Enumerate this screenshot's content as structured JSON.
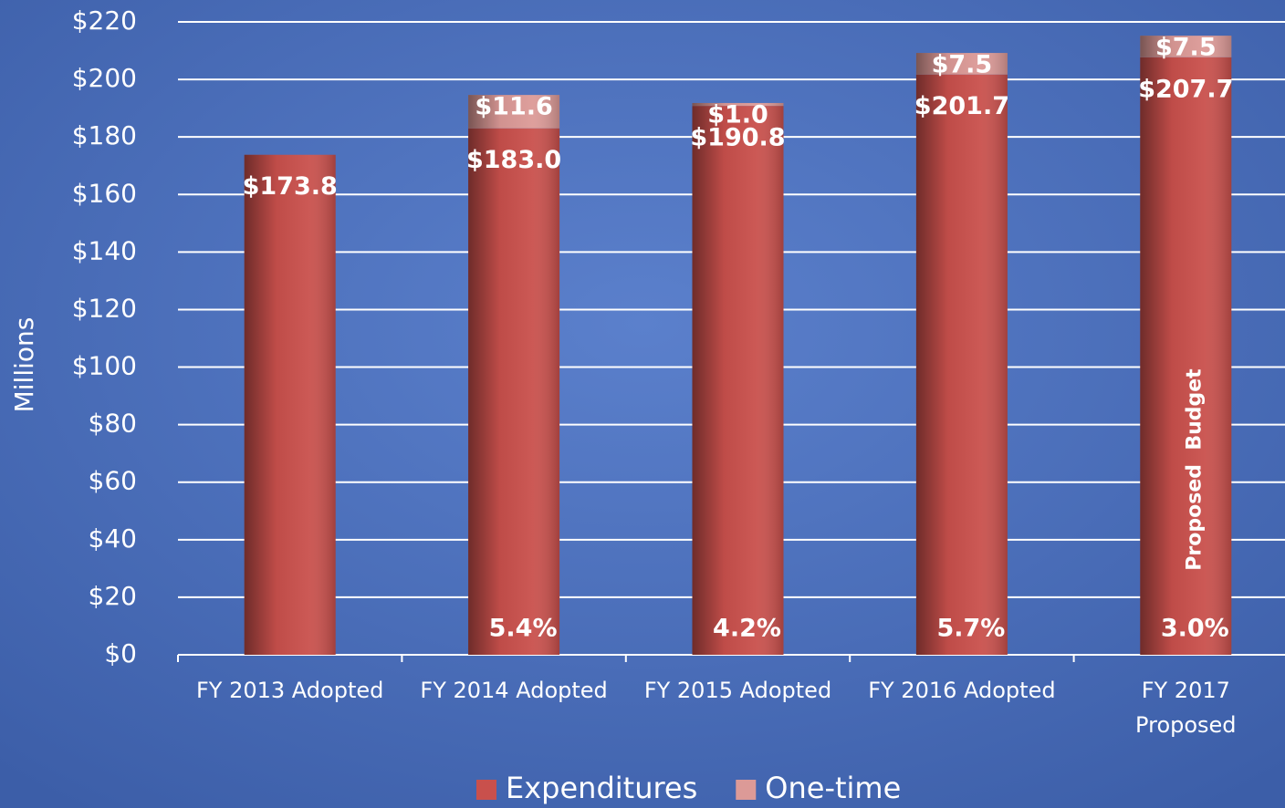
{
  "chart_data": {
    "type": "stacked_bar",
    "categories": [
      "FY 2013 Adopted",
      "FY 2014 Adopted",
      "FY 2015 Adopted",
      "FY 2016 Adopted",
      "FY 2017 Proposed"
    ],
    "series": [
      {
        "name": "Expenditures",
        "color": "#c9504c",
        "values": [
          173.8,
          183.0,
          190.8,
          201.7,
          207.7
        ],
        "value_labels": [
          "$173.8",
          "$183.0",
          "$190.8",
          "$201.7",
          "$207.7"
        ]
      },
      {
        "name": "One-time",
        "color": "#dc9a97",
        "values": [
          null,
          11.6,
          1.0,
          7.5,
          7.5
        ],
        "value_labels": [
          null,
          "$11.6",
          "$1.0",
          "$7.5",
          "$7.5"
        ]
      }
    ],
    "growth_labels": [
      null,
      "5.4%",
      "4.2%",
      "5.7%",
      "3.0%"
    ],
    "annotation": "Proposed  Budget",
    "ylabel": "Millions",
    "ylim": [
      0,
      220
    ],
    "yticks": [
      {
        "value": 0,
        "label": "$0"
      },
      {
        "value": 20,
        "label": "$20"
      },
      {
        "value": 40,
        "label": "$40"
      },
      {
        "value": 60,
        "label": "$60"
      },
      {
        "value": 80,
        "label": "$80"
      },
      {
        "value": 100,
        "label": "$100"
      },
      {
        "value": 120,
        "label": "$120"
      },
      {
        "value": 140,
        "label": "$140"
      },
      {
        "value": 160,
        "label": "$160"
      },
      {
        "value": 180,
        "label": "$180"
      },
      {
        "value": 200,
        "label": "$200"
      },
      {
        "value": 220,
        "label": "$220"
      }
    ],
    "grid": true,
    "legend": "bottom"
  }
}
